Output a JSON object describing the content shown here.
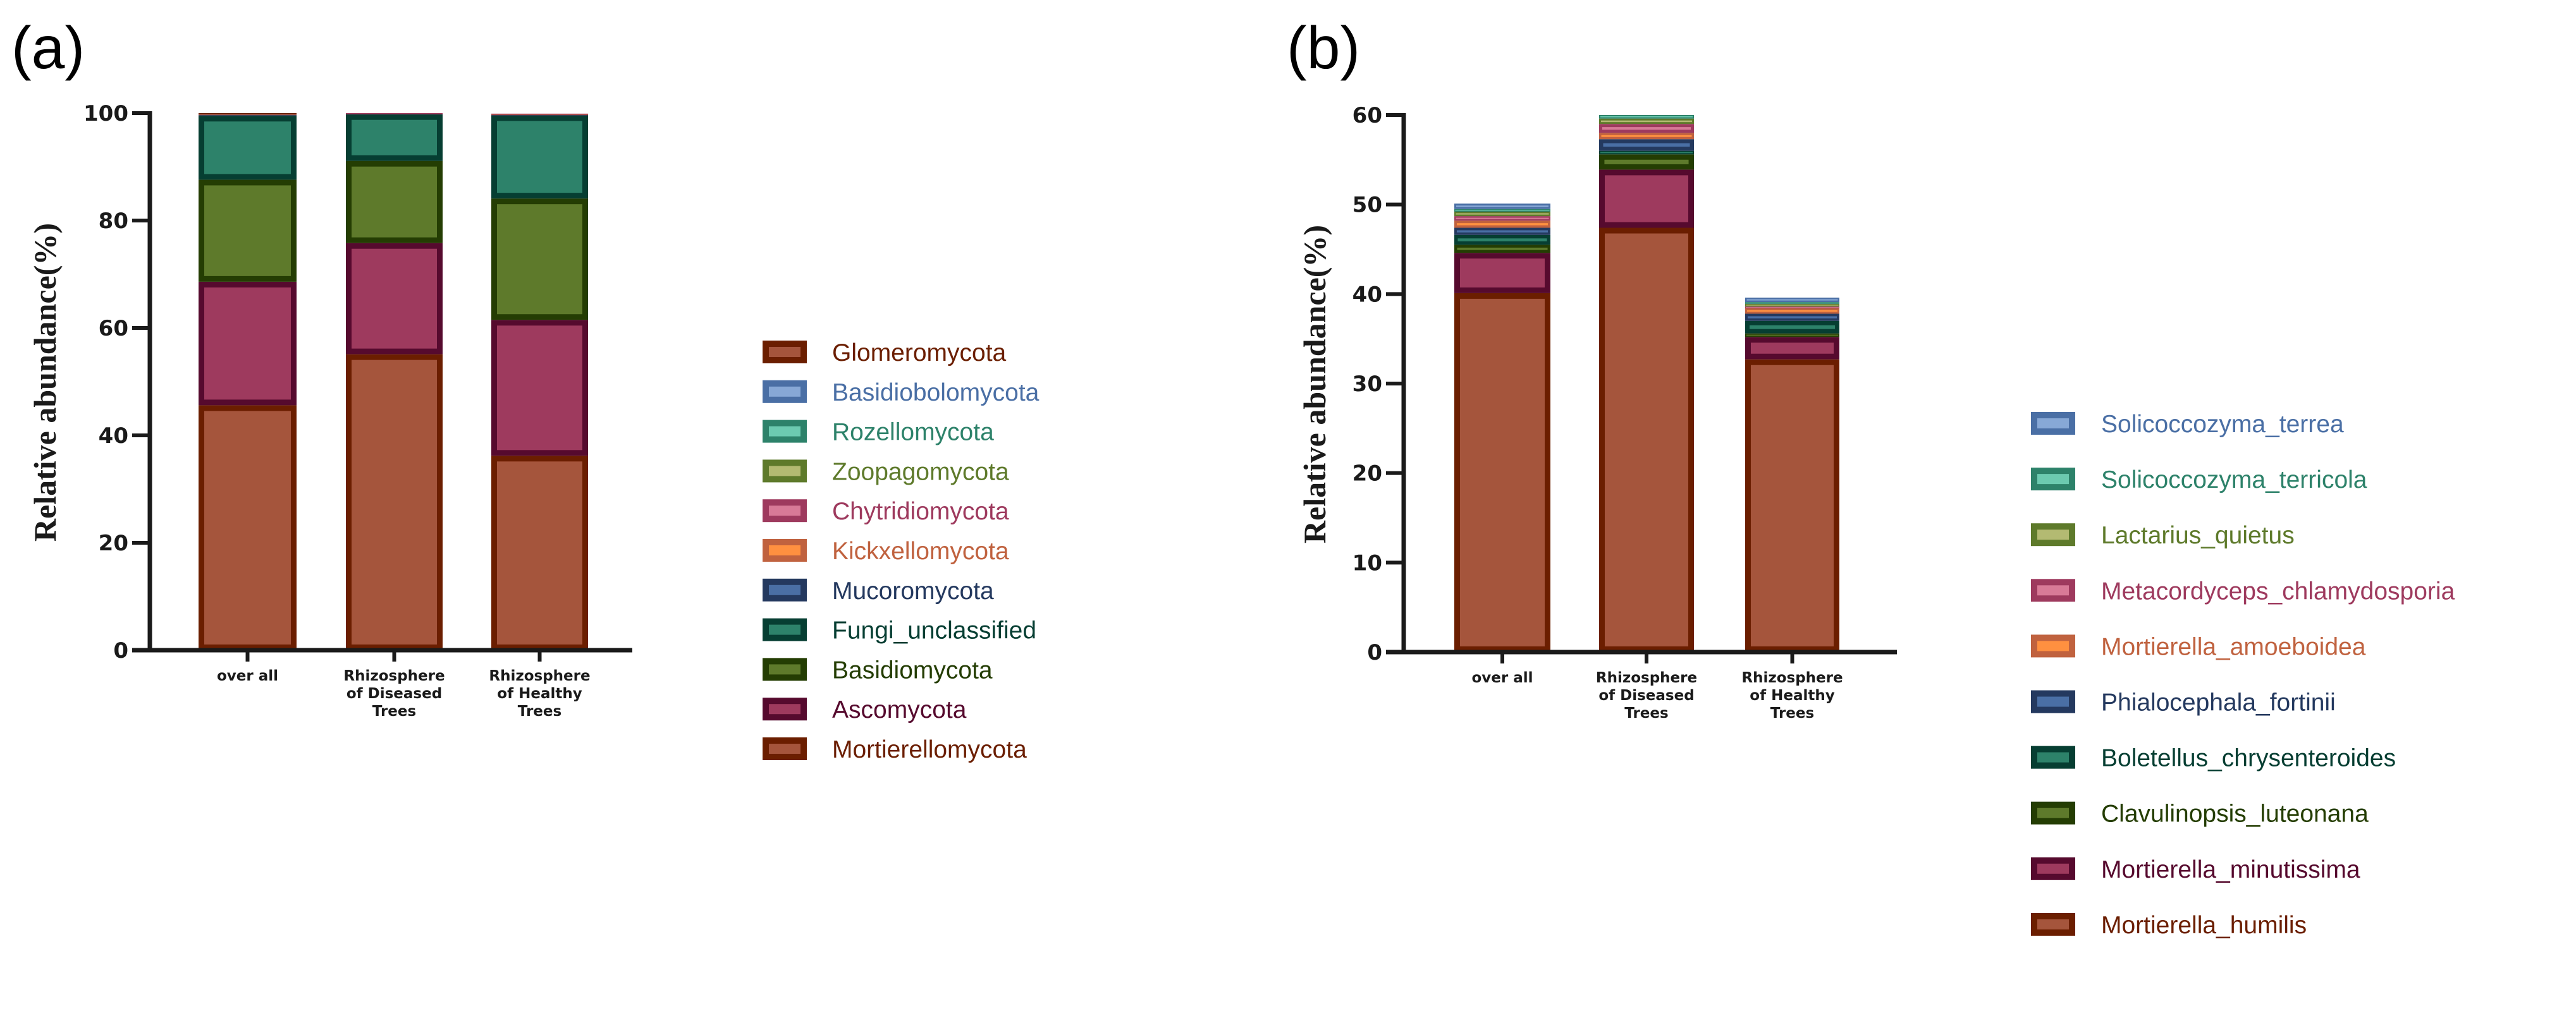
{
  "palette": [
    {
      "fill": "#A5553C",
      "stroke": "#6B1E00"
    },
    {
      "fill": "#9E3A5E",
      "stroke": "#560A2E"
    },
    {
      "fill": "#5E7A2B",
      "stroke": "#243D03"
    },
    {
      "fill": "#2D826A",
      "stroke": "#063E32"
    },
    {
      "fill": "#4A6FA5",
      "stroke": "#24395F"
    },
    {
      "fill": "#FF9040",
      "stroke": "#C0623F"
    },
    {
      "fill": "#D87A97",
      "stroke": "#9E3A5E"
    },
    {
      "fill": "#B3BA72",
      "stroke": "#5E7A2B"
    },
    {
      "fill": "#6CCAB0",
      "stroke": "#2D826A"
    },
    {
      "fill": "#87A8D6",
      "stroke": "#4A6FA5"
    },
    {
      "fill": "#A5553C",
      "stroke": "#6B1E00"
    }
  ],
  "chart_data": [
    {
      "panel_label": "(a)",
      "type": "bar",
      "stacked": true,
      "title": "",
      "xlabel": "",
      "ylabel": "Relative abundance(%)",
      "ylim": [
        0,
        100
      ],
      "yticks": [
        0,
        20,
        40,
        60,
        80,
        100
      ],
      "categories": [
        "over all",
        "Rhizosphere of Diseased Trees",
        "Rhizosphere of Healthy Trees"
      ],
      "category_lines": [
        [
          "over all"
        ],
        [
          "Rhizosphere",
          "of Diseased",
          "Trees"
        ],
        [
          "Rhizosphere",
          "of Healthy",
          "Trees"
        ]
      ],
      "legend_position": "right",
      "series": [
        {
          "name": "Mortierellomycota",
          "values": [
            45.6,
            55.1,
            36.2
          ]
        },
        {
          "name": "Ascomycota",
          "values": [
            23.0,
            20.7,
            25.3
          ]
        },
        {
          "name": "Basidiomycota",
          "values": [
            19.0,
            15.3,
            22.6
          ]
        },
        {
          "name": "Fungi_unclassified",
          "values": [
            11.9,
            8.7,
            15.5
          ]
        },
        {
          "name": "Mucoromycota",
          "values": [
            0.2,
            0.1,
            0.1
          ]
        },
        {
          "name": "Kickxellomycota",
          "values": [
            0.1,
            0.05,
            0.1
          ]
        },
        {
          "name": "Chytridiomycota",
          "values": [
            0.1,
            0.05,
            0.1
          ]
        },
        {
          "name": "Zoopagomycota",
          "values": [
            0.05,
            0.0,
            0.0
          ]
        },
        {
          "name": "Rozellomycota",
          "values": [
            0.02,
            0.0,
            0.0
          ]
        },
        {
          "name": "Basidiobolomycota",
          "values": [
            0.02,
            0.0,
            0.0
          ]
        },
        {
          "name": "Glomeromycota",
          "values": [
            0.01,
            0.0,
            0.0
          ]
        }
      ]
    },
    {
      "panel_label": "(b)",
      "type": "bar",
      "stacked": true,
      "title": "",
      "xlabel": "",
      "ylabel": "Relative abundance(%)",
      "ylim": [
        0,
        60
      ],
      "yticks": [
        0,
        10,
        20,
        30,
        40,
        50,
        60
      ],
      "categories": [
        "over all",
        "Rhizosphere of Diseased Trees",
        "Rhizosphere of Healthy Trees"
      ],
      "category_lines": [
        [
          "over all"
        ],
        [
          "Rhizosphere",
          "of Diseased",
          "Trees"
        ],
        [
          "Rhizosphere",
          "of Healthy",
          "Trees"
        ]
      ],
      "legend_position": "right",
      "series": [
        {
          "name": "Mortierella_humilis",
          "values": [
            40.1,
            47.4,
            32.7
          ]
        },
        {
          "name": "Mortierella_minutissima",
          "values": [
            4.5,
            6.5,
            2.5
          ]
        },
        {
          "name": "Clavulinopsis_luteonana",
          "values": [
            0.9,
            1.7,
            0.4
          ]
        },
        {
          "name": "Boletellus_chrysenteroides",
          "values": [
            1.1,
            0.4,
            1.4
          ]
        },
        {
          "name": "Phialocephala_fortinii",
          "values": [
            0.8,
            1.3,
            0.8
          ]
        },
        {
          "name": "Mortierella_amoeboidea",
          "values": [
            0.8,
            0.7,
            0.6
          ]
        },
        {
          "name": "Metacordyceps_chlamydosporia",
          "values": [
            0.5,
            1.0,
            0.2
          ]
        },
        {
          "name": "Lactarius_quietus",
          "values": [
            0.5,
            0.6,
            0.3
          ]
        },
        {
          "name": "Solicoccozyma_terricola",
          "values": [
            0.3,
            0.4,
            0.2
          ]
        },
        {
          "name": "Solicoccozyma_terrea",
          "values": [
            0.6,
            0.0,
            0.5
          ]
        }
      ]
    }
  ]
}
